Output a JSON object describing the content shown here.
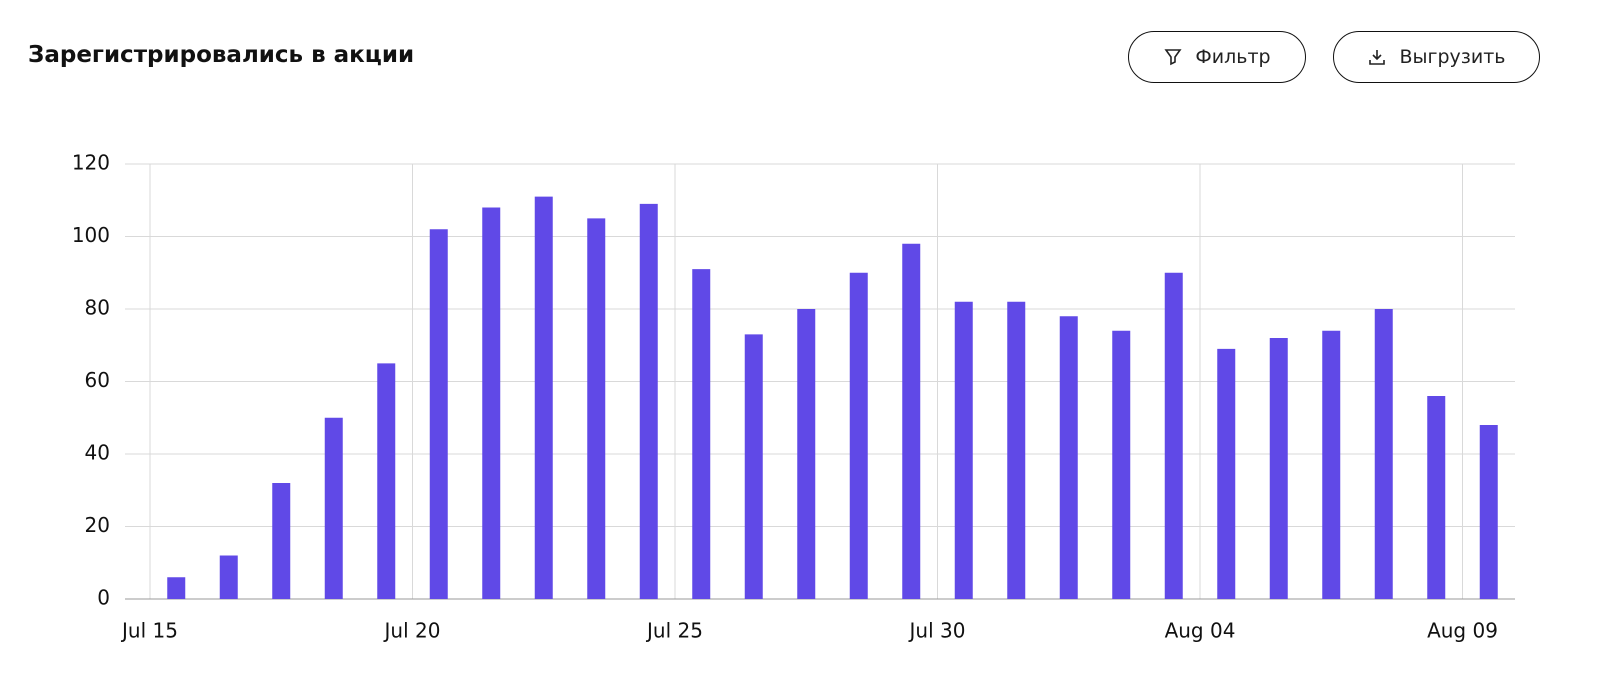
{
  "header": {
    "title": "Зарегистрировались в акции",
    "buttons": [
      "Фильтр",
      "Выгрузить"
    ]
  },
  "chart_data": {
    "type": "bar",
    "categories": [
      "Jul 15",
      null,
      null,
      null,
      null,
      "Jul 20",
      null,
      null,
      null,
      null,
      "Jul 25",
      null,
      null,
      null,
      null,
      "Jul 30",
      null,
      null,
      null,
      null,
      "Aug 04",
      null,
      null,
      null,
      null,
      "Aug 09"
    ],
    "values": [
      6,
      12,
      32,
      50,
      65,
      102,
      108,
      111,
      105,
      109,
      91,
      73,
      80,
      90,
      98,
      82,
      82,
      78,
      74,
      90,
      69,
      72,
      74,
      80,
      56,
      48
    ],
    "color": "#6049e7",
    "ylim": [
      0,
      120
    ],
    "yticks": [
      0,
      20,
      40,
      60,
      80,
      100,
      120
    ],
    "grid": true
  }
}
